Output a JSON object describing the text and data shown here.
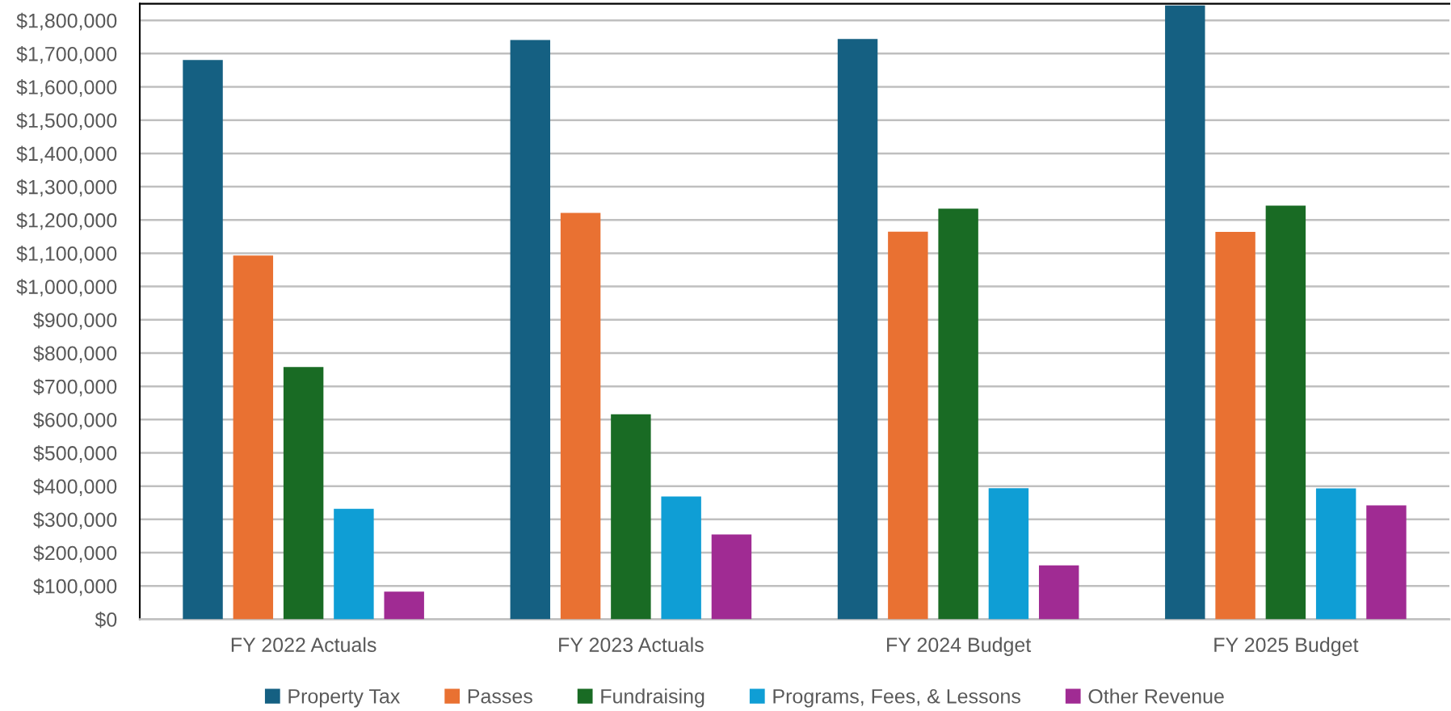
{
  "chart_data": {
    "type": "bar",
    "categories": [
      "FY 2022 Actuals",
      "FY 2023 Actuals",
      "FY 2024 Budget",
      "FY 2025 Budget"
    ],
    "series": [
      {
        "name": "Property Tax",
        "color": "#156082",
        "values": [
          1681000,
          1741000,
          1744000,
          1845000
        ]
      },
      {
        "name": "Passes",
        "color": "#e97132",
        "values": [
          1093000,
          1221000,
          1165000,
          1164000
        ]
      },
      {
        "name": "Fundraising",
        "color": "#196b24",
        "values": [
          758000,
          616000,
          1234000,
          1243000
        ]
      },
      {
        "name": "Programs, Fees, & Lessons",
        "color": "#0f9ed5",
        "values": [
          332000,
          369000,
          394000,
          393000
        ]
      },
      {
        "name": "Other Revenue",
        "color": "#a02b93",
        "values": [
          83000,
          255000,
          162000,
          342000
        ]
      }
    ],
    "ylim": [
      0,
      1850000
    ],
    "yticks": [
      {
        "value": 0,
        "label": "$0"
      },
      {
        "value": 100000,
        "label": "$100,000"
      },
      {
        "value": 200000,
        "label": "$200,000"
      },
      {
        "value": 300000,
        "label": "$300,000"
      },
      {
        "value": 400000,
        "label": "$400,000"
      },
      {
        "value": 500000,
        "label": "$500,000"
      },
      {
        "value": 600000,
        "label": "$600,000"
      },
      {
        "value": 700000,
        "label": "$700,000"
      },
      {
        "value": 800000,
        "label": "$800,000"
      },
      {
        "value": 900000,
        "label": "$900,000"
      },
      {
        "value": 1000000,
        "label": "$1,000,000"
      },
      {
        "value": 1100000,
        "label": "$1,100,000"
      },
      {
        "value": 1200000,
        "label": "$1,200,000"
      },
      {
        "value": 1300000,
        "label": "$1,300,000"
      },
      {
        "value": 1400000,
        "label": "$1,400,000"
      },
      {
        "value": 1500000,
        "label": "$1,500,000"
      },
      {
        "value": 1600000,
        "label": "$1,600,000"
      },
      {
        "value": 1700000,
        "label": "$1,700,000"
      },
      {
        "value": 1800000,
        "label": "$1,800,000"
      }
    ],
    "grid": "y",
    "legend": "bottom"
  }
}
